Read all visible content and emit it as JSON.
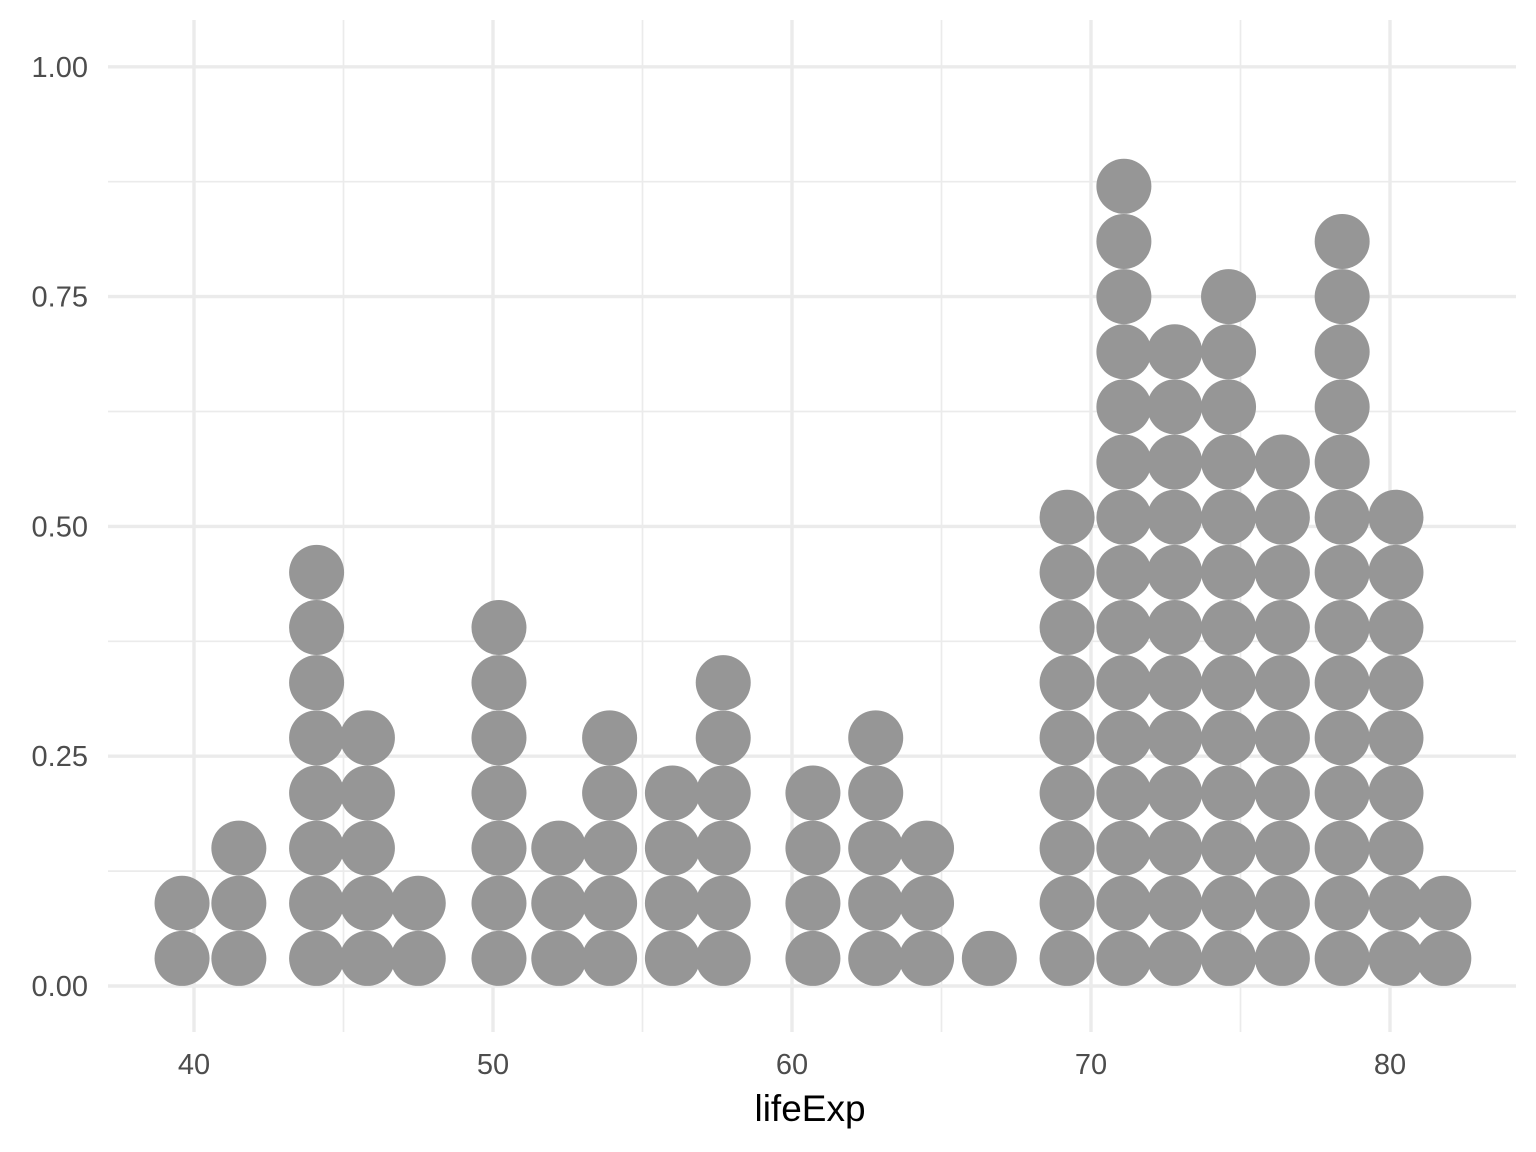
{
  "chart_data": {
    "type": "dotplot",
    "title": "",
    "xlabel": "lifeExp",
    "ylabel": "",
    "xlim": [
      36.8,
      84.1
    ],
    "ylim": [
      -0.045,
      1.045
    ],
    "x_ticks_major": [
      40,
      50,
      60,
      70,
      80
    ],
    "x_ticks_minor": [
      45,
      55,
      65,
      75
    ],
    "y_ticks_major": [
      0.0,
      0.25,
      0.5,
      0.75,
      1.0
    ],
    "y_ticks_minor": [
      0.125,
      0.375,
      0.625,
      0.875
    ],
    "x_tick_labels": [
      "40",
      "50",
      "60",
      "70",
      "80"
    ],
    "y_tick_labels": [
      "0.00",
      "0.25",
      "0.50",
      "0.75",
      "1.00"
    ],
    "grid": true,
    "legend": "none",
    "dot_color": "#969696",
    "dot_step": 0.06,
    "bins": [
      {
        "x": 39.6,
        "count": 2
      },
      {
        "x": 41.5,
        "count": 3
      },
      {
        "x": 44.1,
        "count": 8
      },
      {
        "x": 45.8,
        "count": 5
      },
      {
        "x": 47.5,
        "count": 2
      },
      {
        "x": 50.2,
        "count": 7
      },
      {
        "x": 52.2,
        "count": 3
      },
      {
        "x": 53.9,
        "count": 5
      },
      {
        "x": 56.0,
        "count": 4
      },
      {
        "x": 57.7,
        "count": 6
      },
      {
        "x": 60.7,
        "count": 4
      },
      {
        "x": 62.8,
        "count": 5
      },
      {
        "x": 64.5,
        "count": 3
      },
      {
        "x": 66.6,
        "count": 1
      },
      {
        "x": 69.2,
        "count": 9
      },
      {
        "x": 71.1,
        "count": 15
      },
      {
        "x": 72.8,
        "count": 12
      },
      {
        "x": 74.6,
        "count": 13
      },
      {
        "x": 76.4,
        "count": 10
      },
      {
        "x": 78.4,
        "count": 14
      },
      {
        "x": 80.2,
        "count": 9
      },
      {
        "x": 81.8,
        "count": 2
      }
    ]
  }
}
